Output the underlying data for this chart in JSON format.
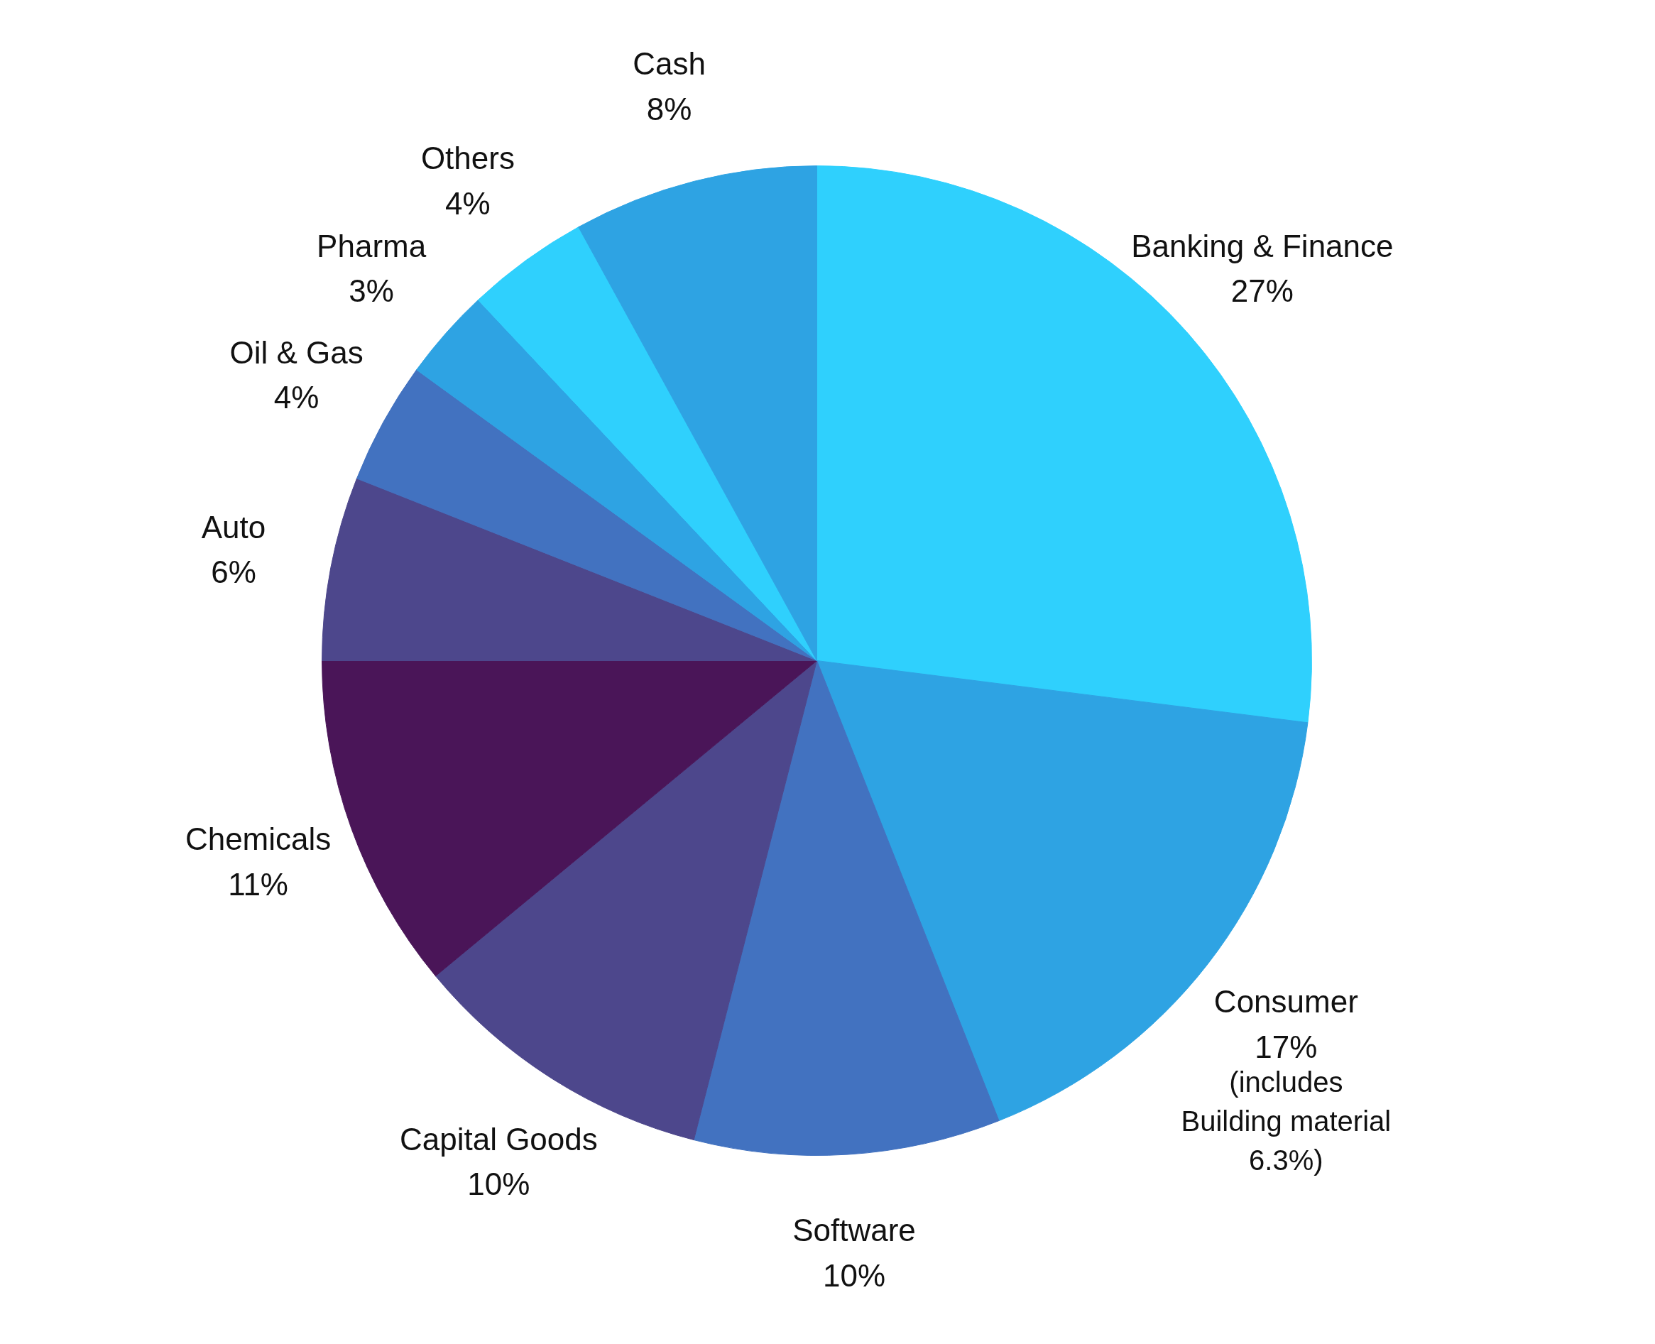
{
  "chart_data": {
    "type": "pie",
    "categories": [
      "Banking & Finance",
      "Consumer",
      "Software",
      "Capital Goods",
      "Chemicals",
      "Auto",
      "Oil & Gas",
      "Pharma",
      "Others",
      "Cash"
    ],
    "values": [
      27,
      17,
      10,
      10,
      11,
      6,
      4,
      3,
      4,
      8
    ],
    "value_labels": [
      "27%",
      "17%",
      "10%",
      "10%",
      "11%",
      "6%",
      "4%",
      "3%",
      "4%",
      "8%"
    ],
    "colors": [
      "#2fd0fd",
      "#2ea3e3",
      "#4272c0",
      "#4d478c",
      "#4a1558",
      "#4d478c",
      "#4272c0",
      "#2ea3e3",
      "#2fd0fd",
      "#2ea3e3"
    ],
    "annotations": [
      {
        "text": "(includes\nBuilding material\n6.3%)",
        "x": "Consumer"
      }
    ]
  }
}
